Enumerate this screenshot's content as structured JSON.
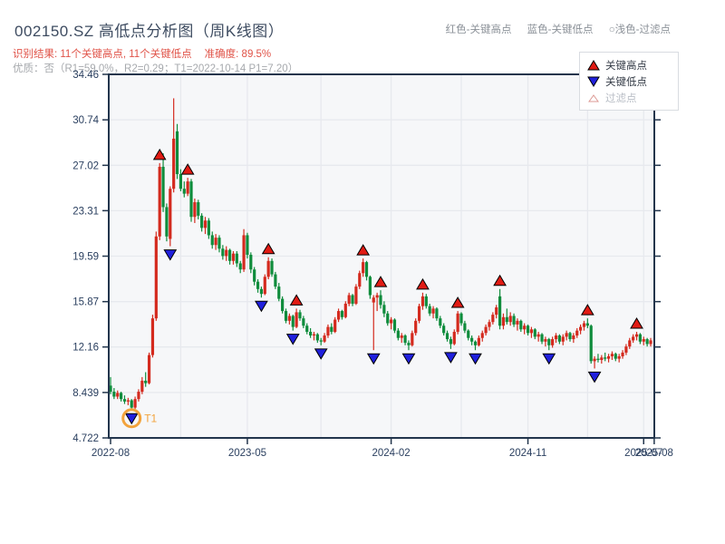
{
  "header": {
    "title": "002150.SZ 高低点分析图（周K线图）",
    "inline_legend": [
      "红色-关键高点",
      "蓝色-关键低点",
      "○浅色-过滤点"
    ],
    "result_line": "识别结果: 11个关键高点, 11个关键低点",
    "accuracy": "准确度: 89.5%",
    "quality_line": "优质：否（R1=59.0%，R2=0.29；T1=2022-10-14 P1=7.20）"
  },
  "legend_box": {
    "items": [
      {
        "label": "关键高点",
        "marker": "up-triangle",
        "color": "#e11b14"
      },
      {
        "label": "关键低点",
        "marker": "down-triangle",
        "color": "#2020dd"
      },
      {
        "label": "过滤点",
        "marker": "filtered-triangle",
        "color": "#ffffff"
      }
    ]
  },
  "colors": {
    "candle_up": "#d42a1e",
    "candle_down": "#0f8c3c",
    "key_high_marker": "#e11b14",
    "key_low_marker": "#2020dd",
    "marker_outline": "#000000",
    "t1_highlight": "#f2a33c",
    "axis_line": "#22354c",
    "axis_text": "#2a3f5f",
    "grid": "#e7e9ee",
    "plot_bg": "#f6f7f9",
    "result_text": "#e05348",
    "muted_text": "#a6a9ad"
  },
  "chart_data": {
    "type": "candlestick",
    "symbol": "002150.SZ",
    "timeframe": "weekly",
    "title": "002150.SZ 高低点分析图（周K线图）",
    "ylim": [
      4.722,
      34.46
    ],
    "y_ticks": [
      {
        "value": 34.46,
        "label": "34.46"
      },
      {
        "value": 30.74,
        "label": "30.74"
      },
      {
        "value": 27.02,
        "label": "27.02"
      },
      {
        "value": 23.31,
        "label": "23.31"
      },
      {
        "value": 19.59,
        "label": "19.59"
      },
      {
        "value": 15.87,
        "label": "15.87"
      },
      {
        "value": 12.16,
        "label": "12.16"
      },
      {
        "value": 8.439,
        "label": "8.439"
      },
      {
        "value": 4.722,
        "label": "4.722"
      }
    ],
    "x_ticks": [
      {
        "week": 0,
        "label": "2022-08"
      },
      {
        "week": 39,
        "label": "2023-05"
      },
      {
        "week": 80,
        "label": "2024-02"
      },
      {
        "week": 119,
        "label": "2024-11"
      },
      {
        "week": 152,
        "label": "2025-07"
      },
      {
        "week": 155,
        "label": "2025-08"
      }
    ],
    "x_gridline_weeks": [
      20,
      39,
      60,
      80,
      100,
      119,
      136,
      152
    ],
    "candles": [
      [
        9.0,
        9.7,
        8.3,
        8.5
      ],
      [
        8.5,
        8.8,
        7.9,
        8.1
      ],
      [
        8.1,
        8.6,
        7.9,
        8.4
      ],
      [
        8.4,
        8.5,
        7.7,
        7.9
      ],
      [
        7.9,
        8.2,
        7.5,
        7.7
      ],
      [
        7.7,
        8.0,
        7.4,
        7.8
      ],
      [
        7.8,
        7.9,
        7.0,
        7.2
      ],
      [
        7.2,
        8.1,
        7.1,
        7.9
      ],
      [
        7.9,
        8.7,
        7.7,
        8.5
      ],
      [
        8.5,
        9.7,
        8.3,
        9.4
      ],
      [
        9.4,
        10.1,
        8.9,
        9.2
      ],
      [
        9.2,
        11.7,
        9.1,
        11.5
      ],
      [
        11.5,
        14.8,
        11.3,
        14.5
      ],
      [
        14.5,
        21.6,
        14.3,
        21.2
      ],
      [
        21.2,
        27.2,
        20.9,
        26.9
      ],
      [
        26.9,
        28.0,
        23.2,
        23.6
      ],
      [
        23.6,
        23.9,
        20.8,
        21.2
      ],
      [
        21.0,
        25.3,
        20.4,
        25.1
      ],
      [
        25.1,
        32.5,
        24.8,
        29.2
      ],
      [
        29.8,
        30.4,
        25.9,
        26.3
      ],
      [
        26.3,
        26.7,
        24.9,
        25.1
      ],
      [
        25.1,
        25.7,
        24.4,
        24.7
      ],
      [
        24.7,
        26.0,
        24.5,
        25.7
      ],
      [
        25.7,
        25.9,
        22.4,
        22.8
      ],
      [
        22.8,
        24.3,
        22.3,
        24.0
      ],
      [
        24.0,
        24.2,
        22.6,
        22.9
      ],
      [
        22.9,
        23.1,
        21.6,
        21.9
      ],
      [
        21.9,
        22.8,
        21.4,
        22.5
      ],
      [
        22.5,
        22.7,
        21.0,
        21.3
      ],
      [
        21.3,
        21.6,
        20.2,
        20.5
      ],
      [
        20.5,
        21.4,
        20.1,
        21.1
      ],
      [
        21.1,
        21.3,
        19.9,
        20.2
      ],
      [
        20.2,
        20.5,
        19.3,
        19.6
      ],
      [
        19.6,
        20.4,
        19.2,
        20.1
      ],
      [
        20.1,
        20.2,
        18.9,
        19.2
      ],
      [
        19.2,
        20.0,
        18.9,
        19.8
      ],
      [
        19.8,
        20.0,
        18.7,
        19.0
      ],
      [
        19.0,
        19.2,
        18.2,
        18.5
      ],
      [
        18.5,
        21.8,
        18.3,
        21.3
      ],
      [
        21.3,
        21.5,
        19.4,
        19.7
      ],
      [
        19.7,
        19.9,
        18.2,
        18.5
      ],
      [
        18.5,
        18.7,
        17.2,
        17.5
      ],
      [
        17.5,
        17.7,
        16.6,
        16.9
      ],
      [
        16.9,
        17.1,
        16.2,
        16.5
      ],
      [
        16.5,
        18.1,
        16.4,
        17.9
      ],
      [
        17.9,
        19.5,
        17.7,
        19.2
      ],
      [
        19.2,
        19.4,
        17.9,
        18.1
      ],
      [
        18.1,
        18.3,
        16.9,
        17.1
      ],
      [
        17.1,
        17.4,
        15.9,
        16.1
      ],
      [
        16.1,
        16.3,
        14.9,
        15.1
      ],
      [
        15.1,
        15.3,
        14.1,
        14.3
      ],
      [
        14.3,
        14.9,
        14.0,
        14.7
      ],
      [
        14.7,
        14.8,
        13.5,
        13.8
      ],
      [
        13.8,
        15.3,
        13.7,
        15.0
      ],
      [
        15.0,
        15.2,
        14.3,
        14.5
      ],
      [
        14.5,
        14.7,
        13.7,
        13.9
      ],
      [
        13.9,
        14.1,
        13.2,
        13.4
      ],
      [
        13.4,
        13.7,
        12.9,
        13.1
      ],
      [
        13.1,
        13.4,
        12.7,
        13.2
      ],
      [
        13.2,
        13.3,
        12.5,
        12.7
      ],
      [
        12.7,
        12.9,
        12.3,
        12.6
      ],
      [
        12.6,
        13.3,
        12.5,
        13.1
      ],
      [
        13.1,
        14.0,
        12.9,
        13.8
      ],
      [
        13.8,
        14.1,
        13.2,
        13.4
      ],
      [
        13.4,
        14.6,
        13.3,
        14.4
      ],
      [
        14.4,
        15.3,
        14.2,
        15.1
      ],
      [
        15.1,
        15.2,
        14.4,
        14.6
      ],
      [
        14.6,
        15.9,
        14.5,
        15.7
      ],
      [
        15.7,
        16.6,
        15.5,
        16.4
      ],
      [
        16.4,
        16.5,
        15.5,
        15.7
      ],
      [
        15.7,
        17.3,
        15.6,
        17.1
      ],
      [
        17.1,
        18.4,
        16.9,
        18.2
      ],
      [
        18.2,
        19.4,
        17.9,
        19.1
      ],
      [
        19.1,
        19.2,
        17.6,
        17.9
      ],
      [
        17.9,
        18.0,
        16.1,
        16.4
      ],
      [
        15.8,
        16.4,
        11.9,
        16.2
      ],
      [
        16.2,
        16.6,
        15.1,
        16.4
      ],
      [
        16.4,
        16.8,
        15.3,
        15.6
      ],
      [
        15.6,
        15.9,
        14.6,
        14.9
      ],
      [
        14.9,
        15.1,
        13.9,
        14.1
      ],
      [
        14.1,
        14.6,
        13.6,
        14.4
      ],
      [
        14.4,
        14.5,
        13.3,
        13.5
      ],
      [
        13.5,
        13.7,
        12.7,
        12.9
      ],
      [
        12.9,
        13.3,
        12.5,
        13.1
      ],
      [
        13.1,
        13.2,
        12.3,
        12.5
      ],
      [
        12.5,
        12.7,
        11.9,
        12.3
      ],
      [
        12.3,
        13.5,
        12.2,
        13.3
      ],
      [
        13.3,
        14.5,
        13.1,
        14.3
      ],
      [
        14.3,
        15.7,
        14.1,
        15.5
      ],
      [
        15.5,
        16.6,
        15.2,
        16.3
      ],
      [
        16.3,
        16.5,
        15.3,
        15.5
      ],
      [
        15.5,
        15.7,
        14.7,
        14.9
      ],
      [
        14.9,
        15.5,
        14.5,
        15.3
      ],
      [
        15.3,
        15.4,
        14.3,
        14.5
      ],
      [
        14.5,
        14.7,
        13.7,
        13.9
      ],
      [
        13.9,
        14.1,
        13.1,
        13.3
      ],
      [
        13.3,
        13.5,
        12.6,
        12.8
      ],
      [
        12.8,
        13.0,
        12.0,
        12.4
      ],
      [
        12.4,
        13.6,
        12.3,
        13.4
      ],
      [
        13.4,
        15.1,
        13.2,
        14.9
      ],
      [
        14.9,
        15.0,
        13.9,
        14.1
      ],
      [
        14.1,
        14.3,
        13.3,
        13.5
      ],
      [
        13.5,
        13.6,
        12.7,
        12.9
      ],
      [
        12.9,
        13.1,
        12.3,
        12.6
      ],
      [
        12.6,
        12.7,
        11.9,
        12.3
      ],
      [
        12.3,
        13.1,
        12.2,
        12.9
      ],
      [
        12.9,
        13.5,
        12.6,
        13.3
      ],
      [
        13.3,
        14.0,
        13.1,
        13.8
      ],
      [
        13.8,
        14.4,
        13.5,
        14.2
      ],
      [
        14.2,
        15.0,
        14.0,
        14.8
      ],
      [
        14.8,
        15.6,
        14.5,
        15.4
      ],
      [
        16.3,
        16.9,
        13.6,
        13.9
      ],
      [
        13.9,
        14.9,
        13.6,
        14.6
      ],
      [
        14.6,
        15.3,
        14.0,
        14.2
      ],
      [
        14.2,
        15.0,
        13.9,
        14.7
      ],
      [
        14.7,
        14.9,
        13.8,
        14.0
      ],
      [
        14.0,
        14.5,
        13.5,
        14.3
      ],
      [
        14.3,
        14.4,
        13.4,
        13.6
      ],
      [
        13.6,
        14.1,
        13.2,
        13.9
      ],
      [
        13.9,
        14.0,
        13.1,
        13.3
      ],
      [
        13.3,
        13.8,
        12.9,
        13.6
      ],
      [
        13.6,
        13.7,
        12.8,
        13.0
      ],
      [
        13.0,
        13.4,
        12.6,
        13.2
      ],
      [
        13.2,
        13.3,
        12.4,
        12.6
      ],
      [
        12.6,
        13.0,
        12.2,
        12.8
      ],
      [
        12.8,
        12.9,
        11.9,
        12.3
      ],
      [
        12.3,
        13.0,
        12.1,
        12.8
      ],
      [
        12.8,
        13.3,
        12.5,
        13.1
      ],
      [
        13.1,
        13.2,
        12.4,
        12.6
      ],
      [
        12.6,
        13.2,
        12.3,
        13.0
      ],
      [
        13.0,
        13.5,
        12.7,
        13.3
      ],
      [
        13.3,
        13.4,
        12.6,
        12.8
      ],
      [
        12.8,
        13.3,
        12.5,
        13.1
      ],
      [
        13.1,
        13.7,
        12.9,
        13.5
      ],
      [
        13.5,
        14.0,
        13.2,
        13.8
      ],
      [
        13.8,
        14.3,
        13.5,
        14.1
      ],
      [
        14.1,
        14.5,
        13.7,
        13.9
      ],
      [
        13.9,
        14.0,
        10.8,
        11.0
      ],
      [
        11.0,
        11.4,
        10.4,
        11.2
      ],
      [
        11.2,
        11.6,
        10.9,
        11.1
      ],
      [
        11.1,
        11.5,
        10.8,
        11.3
      ],
      [
        11.3,
        11.7,
        11.0,
        11.2
      ],
      [
        11.2,
        11.6,
        10.9,
        11.4
      ],
      [
        11.4,
        11.8,
        11.1,
        11.6
      ],
      [
        11.6,
        11.7,
        11.0,
        11.2
      ],
      [
        11.2,
        11.6,
        10.9,
        11.4
      ],
      [
        11.4,
        11.9,
        11.2,
        11.7
      ],
      [
        11.7,
        12.4,
        11.5,
        12.2
      ],
      [
        12.2,
        12.9,
        12.0,
        12.7
      ],
      [
        12.7,
        13.2,
        12.5,
        13.0
      ],
      [
        13.0,
        13.4,
        12.7,
        13.2
      ],
      [
        13.2,
        13.3,
        12.4,
        12.6
      ],
      [
        12.6,
        13.0,
        12.3,
        12.8
      ],
      [
        12.8,
        12.9,
        12.2,
        12.4
      ],
      [
        12.4,
        12.9,
        12.2,
        12.7
      ]
    ],
    "key_highs": [
      {
        "week": 14,
        "price": 27.2
      },
      {
        "week": 22,
        "price": 26.0
      },
      {
        "week": 45,
        "price": 19.5
      },
      {
        "week": 53,
        "price": 15.3
      },
      {
        "week": 72,
        "price": 19.4
      },
      {
        "week": 77,
        "price": 16.8
      },
      {
        "week": 89,
        "price": 16.6
      },
      {
        "week": 99,
        "price": 15.1
      },
      {
        "week": 111,
        "price": 16.9
      },
      {
        "week": 136,
        "price": 14.5
      },
      {
        "week": 150,
        "price": 13.4
      }
    ],
    "key_lows": [
      {
        "week": 6,
        "price": 7.0
      },
      {
        "week": 17,
        "price": 20.4
      },
      {
        "week": 43,
        "price": 16.2
      },
      {
        "week": 52,
        "price": 13.5
      },
      {
        "week": 60,
        "price": 12.3
      },
      {
        "week": 75,
        "price": 11.9
      },
      {
        "week": 85,
        "price": 11.9
      },
      {
        "week": 97,
        "price": 12.0
      },
      {
        "week": 104,
        "price": 11.9
      },
      {
        "week": 125,
        "price": 11.9
      },
      {
        "week": 138,
        "price": 10.4
      }
    ],
    "t1_marker": {
      "week": 6,
      "price": 7.0,
      "label": "T1"
    }
  }
}
